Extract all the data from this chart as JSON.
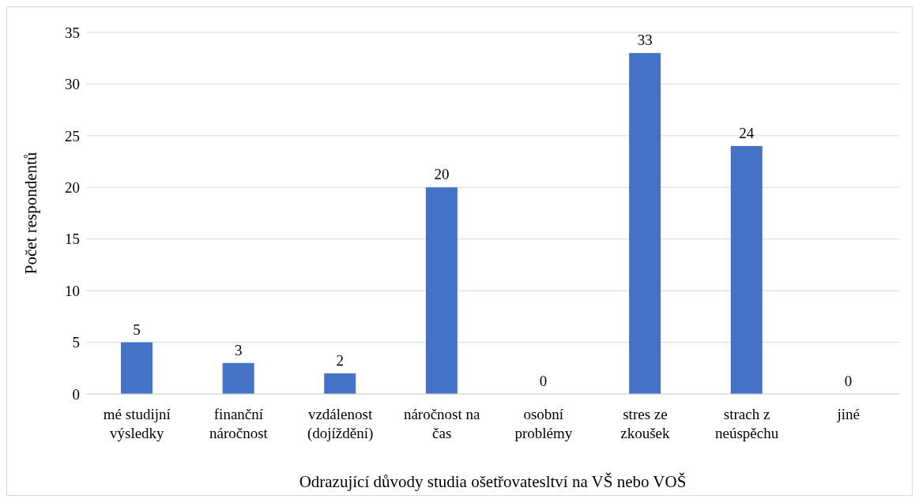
{
  "chart_data": {
    "type": "bar",
    "xlabel": "Odrazující důvody studia ošetřovatesltví  na VŠ nebo VOŠ",
    "ylabel": "Počet respondentů",
    "categories": [
      "mé studijní výsledky",
      "finanční náročnost",
      "vzdálenost (dojíždění)",
      "náročnost na čas",
      "osobní problémy",
      "stres ze zkoušek",
      "strach z neúspěchu",
      "jiné"
    ],
    "values": [
      5,
      3,
      2,
      20,
      0,
      33,
      24,
      0
    ],
    "color": "#4472c4",
    "ylim": [
      0,
      35
    ],
    "yticks": [
      0,
      5,
      10,
      15,
      20,
      25,
      30,
      35
    ],
    "grid": "y",
    "data_labels": true,
    "legend": false
  }
}
